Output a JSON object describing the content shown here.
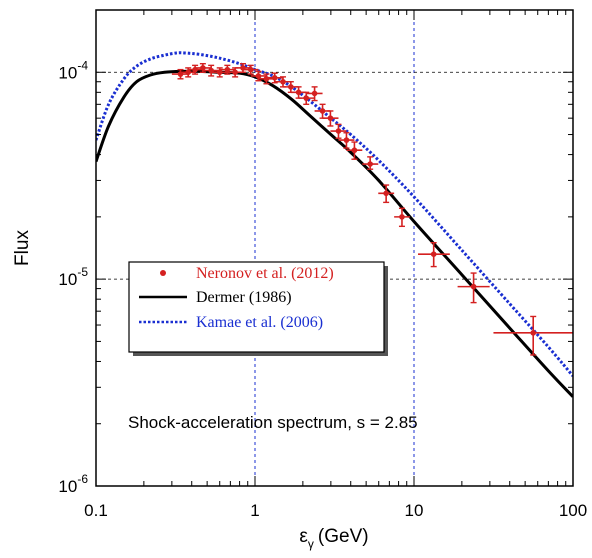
{
  "chart_data": {
    "type": "scatter",
    "title": "",
    "xlabel_main": "ε",
    "xlabel_sub": "γ",
    "xlabel_unit": "(GeV)",
    "ylabel": "Flux",
    "xscale": "log",
    "yscale": "log",
    "xlim": [
      0.1,
      100
    ],
    "ylim": [
      1e-06,
      0.0002
    ],
    "x_ticks": [
      {
        "value": 0.1,
        "label": "0.1"
      },
      {
        "value": 1,
        "label": "1"
      },
      {
        "value": 10,
        "label": "10"
      },
      {
        "value": 100,
        "label": "100"
      }
    ],
    "y_ticks": [
      {
        "value": 1e-06,
        "base": "10",
        "exp": "-6"
      },
      {
        "value": 1e-05,
        "base": "10",
        "exp": "-5"
      },
      {
        "value": 0.0001,
        "base": "10",
        "exp": "-4"
      }
    ],
    "grid": "dashed at major decades",
    "legend_position": "center-left",
    "annotation": "Shock-acceleration spectrum, s = 2.85",
    "series": [
      {
        "name": "Neronov et al. (2012)",
        "kind": "points-with-errorbars",
        "color": "#d42020",
        "points": [
          {
            "x": 0.34,
            "y": 9.8e-05,
            "xlo": 0.3,
            "xhi": 0.38,
            "ylo": 9.3e-05,
            "yhi": 0.000103
          },
          {
            "x": 0.38,
            "y": 0.0001,
            "xlo": 0.34,
            "xhi": 0.42,
            "ylo": 9.5e-05,
            "yhi": 0.000105
          },
          {
            "x": 0.42,
            "y": 0.000103,
            "xlo": 0.38,
            "xhi": 0.47,
            "ylo": 9.8e-05,
            "yhi": 0.000108
          },
          {
            "x": 0.47,
            "y": 0.000105,
            "xlo": 0.42,
            "xhi": 0.53,
            "ylo": 0.0001,
            "yhi": 0.00011
          },
          {
            "x": 0.53,
            "y": 0.000102,
            "xlo": 0.47,
            "xhi": 0.6,
            "ylo": 9.6e-05,
            "yhi": 0.000108
          },
          {
            "x": 0.6,
            "y": 0.0001,
            "xlo": 0.53,
            "xhi": 0.67,
            "ylo": 9.5e-05,
            "yhi": 0.000105
          },
          {
            "x": 0.67,
            "y": 0.000103,
            "xlo": 0.6,
            "xhi": 0.75,
            "ylo": 9.8e-05,
            "yhi": 0.000108
          },
          {
            "x": 0.75,
            "y": 0.0001,
            "xlo": 0.67,
            "xhi": 0.84,
            "ylo": 9.5e-05,
            "yhi": 0.000105
          },
          {
            "x": 0.84,
            "y": 0.000105,
            "xlo": 0.75,
            "xhi": 0.94,
            "ylo": 0.0001,
            "yhi": 0.00011
          },
          {
            "x": 0.94,
            "y": 0.000103,
            "xlo": 0.84,
            "xhi": 1.05,
            "ylo": 9.8e-05,
            "yhi": 0.000108
          },
          {
            "x": 1.05,
            "y": 9.6e-05,
            "xlo": 0.94,
            "xhi": 1.18,
            "ylo": 9.1e-05,
            "yhi": 0.000101
          },
          {
            "x": 1.18,
            "y": 9.3e-05,
            "xlo": 1.05,
            "xhi": 1.33,
            "ylo": 8.8e-05,
            "yhi": 9.8e-05
          },
          {
            "x": 1.33,
            "y": 9.4e-05,
            "xlo": 1.18,
            "xhi": 1.5,
            "ylo": 8.9e-05,
            "yhi": 9.9e-05
          },
          {
            "x": 1.5,
            "y": 9e-05,
            "xlo": 1.33,
            "xhi": 1.68,
            "ylo": 8.5e-05,
            "yhi": 9.5e-05
          },
          {
            "x": 1.68,
            "y": 8.5e-05,
            "xlo": 1.5,
            "xhi": 1.88,
            "ylo": 8e-05,
            "yhi": 9e-05
          },
          {
            "x": 1.88,
            "y": 8e-05,
            "xlo": 1.68,
            "xhi": 2.1,
            "ylo": 7.5e-05,
            "yhi": 8.5e-05
          },
          {
            "x": 2.1,
            "y": 7.5e-05,
            "xlo": 1.88,
            "xhi": 2.37,
            "ylo": 7e-05,
            "yhi": 8e-05
          },
          {
            "x": 2.37,
            "y": 7.9e-05,
            "xlo": 2.1,
            "xhi": 2.66,
            "ylo": 7.3e-05,
            "yhi": 8.5e-05
          },
          {
            "x": 2.66,
            "y": 6.5e-05,
            "xlo": 2.37,
            "xhi": 2.98,
            "ylo": 6e-05,
            "yhi": 7e-05
          },
          {
            "x": 2.98,
            "y": 6e-05,
            "xlo": 2.66,
            "xhi": 3.35,
            "ylo": 5.5e-05,
            "yhi": 6.5e-05
          },
          {
            "x": 3.35,
            "y": 5.2e-05,
            "xlo": 2.98,
            "xhi": 3.76,
            "ylo": 4.8e-05,
            "yhi": 5.6e-05
          },
          {
            "x": 3.76,
            "y": 4.7e-05,
            "xlo": 3.35,
            "xhi": 4.22,
            "ylo": 4.3e-05,
            "yhi": 5.1e-05
          },
          {
            "x": 4.22,
            "y": 4.2e-05,
            "xlo": 3.76,
            "xhi": 4.73,
            "ylo": 3.8e-05,
            "yhi": 4.6e-05
          },
          {
            "x": 5.3,
            "y": 3.6e-05,
            "xlo": 4.73,
            "xhi": 5.96,
            "ylo": 3.4e-05,
            "yhi": 3.9e-05
          },
          {
            "x": 6.68,
            "y": 2.6e-05,
            "xlo": 5.96,
            "xhi": 7.5,
            "ylo": 2.35e-05,
            "yhi": 2.85e-05
          },
          {
            "x": 8.4,
            "y": 2e-05,
            "xlo": 7.5,
            "xhi": 9.44,
            "ylo": 1.8e-05,
            "yhi": 2.2e-05
          },
          {
            "x": 13.3,
            "y": 1.32e-05,
            "xlo": 10.6,
            "xhi": 16.8,
            "ylo": 1.15e-05,
            "yhi": 1.5e-05
          },
          {
            "x": 23.7,
            "y": 9.2e-06,
            "xlo": 18.8,
            "xhi": 29.9,
            "ylo": 7.7e-06,
            "yhi": 1.07e-05
          },
          {
            "x": 56.2,
            "y": 5.5e-06,
            "xlo": 31.6,
            "xhi": 100,
            "ylo": 4.3e-06,
            "yhi": 6.6e-06
          }
        ]
      },
      {
        "name": "Dermer (1986)",
        "kind": "line",
        "color": "#000000",
        "line_style": "solid",
        "x": [
          0.1,
          0.12,
          0.15,
          0.18,
          0.22,
          0.27,
          0.35,
          0.45,
          0.6,
          0.8,
          1.0,
          1.3,
          1.7,
          2.2,
          3.0,
          4.0,
          6.0,
          10,
          20,
          40,
          70,
          100
        ],
        "y": [
          3.7e-05,
          5.5e-05,
          7.6e-05,
          9e-05,
          9.7e-05,
          0.0001,
          0.000101,
          0.000101,
          0.0001,
          9.9e-05,
          9.5e-05,
          8.6e-05,
          7.4e-05,
          6.2e-05,
          5e-05,
          4.1e-05,
          3e-05,
          1.9e-05,
          1.05e-05,
          5.8e-06,
          3.6e-06,
          2.7e-06
        ]
      },
      {
        "name": "Kamae et al. (2006)",
        "kind": "line",
        "color": "#1a2fd1",
        "line_style": "dotted",
        "x": [
          0.1,
          0.12,
          0.15,
          0.18,
          0.22,
          0.27,
          0.32,
          0.36,
          0.45,
          0.6,
          0.8,
          1.0,
          1.3,
          1.7,
          2.2,
          3.0,
          4.0,
          6.0,
          10,
          20,
          40,
          70,
          100
        ],
        "y": [
          4.7e-05,
          7e-05,
          9.3e-05,
          0.000107,
          0.000116,
          0.000121,
          0.000124,
          0.000124,
          0.000122,
          0.000117,
          0.00011,
          0.000103,
          9.6e-05,
          8.5e-05,
          7.3e-05,
          6e-05,
          5e-05,
          3.75e-05,
          2.5e-05,
          1.38e-05,
          7.6e-06,
          4.7e-06,
          3.4e-06
        ]
      }
    ]
  }
}
